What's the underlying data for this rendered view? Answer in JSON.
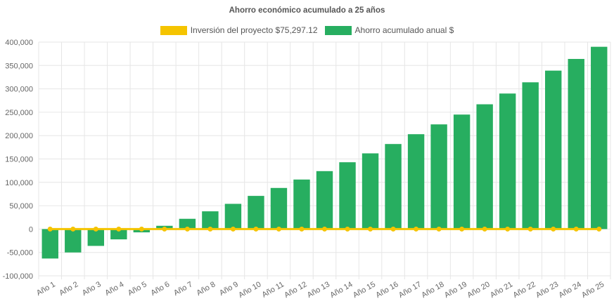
{
  "chart_data": {
    "type": "bar",
    "title": "Ahorro económico acumulado a 25 años",
    "categories": [
      "Año 1",
      "Año 2",
      "Año 3",
      "Año 4",
      "Año 5",
      "Año 6",
      "Año 7",
      "Año 8",
      "Año 9",
      "Año 10",
      "Año 11",
      "Año 12",
      "Año 13",
      "Año 14",
      "Año 15",
      "Año 16",
      "Año 17",
      "Año 18",
      "Año 19",
      "Año 20",
      "Año 21",
      "Año 22",
      "Año 23",
      "Año 24",
      "Año 25"
    ],
    "series": [
      {
        "name": "Inversión del proyecto $75,297.12",
        "type": "line",
        "color": "#f5c400",
        "values": [
          0,
          0,
          0,
          0,
          0,
          0,
          0,
          0,
          0,
          0,
          0,
          0,
          0,
          0,
          0,
          0,
          0,
          0,
          0,
          0,
          0,
          0,
          0,
          0,
          0
        ]
      },
      {
        "name": "Ahorro acumulado anual $",
        "type": "bar",
        "color": "#27ae60",
        "values": [
          -63000,
          -50000,
          -36000,
          -22000,
          -7000,
          7000,
          22000,
          38000,
          54000,
          71000,
          88000,
          106000,
          124000,
          143000,
          162000,
          182000,
          203000,
          224000,
          245000,
          267000,
          290000,
          314000,
          339000,
          364000,
          390000
        ]
      }
    ],
    "ylim": [
      -100000,
      400000
    ],
    "yticks": [
      -100000,
      -50000,
      0,
      50000,
      100000,
      150000,
      200000,
      250000,
      300000,
      350000,
      400000
    ],
    "ytick_labels": [
      "-100,000",
      "-50,000",
      "0",
      "50,000",
      "100,000",
      "150,000",
      "200,000",
      "250,000",
      "300,000",
      "350,000",
      "400,000"
    ],
    "grid": true,
    "legend_position": "top-center"
  }
}
